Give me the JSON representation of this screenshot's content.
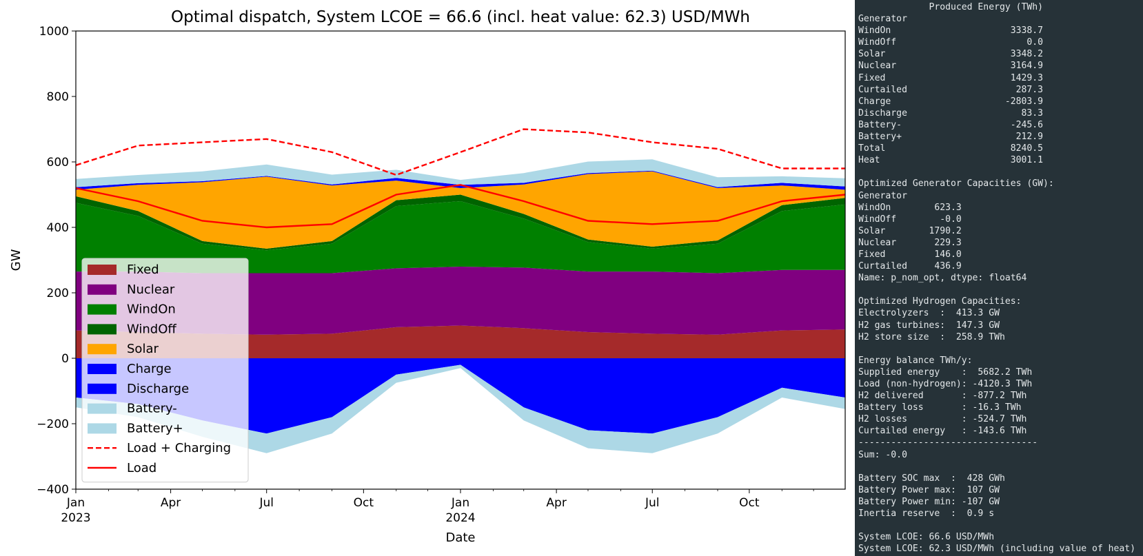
{
  "chart_data": {
    "type": "area",
    "title": "Optimal dispatch, System LCOE = 66.6 (incl. heat value: 62.3) USD/MWh",
    "xlabel": "Date",
    "ylabel": "GW",
    "ylim": [
      -400,
      1000
    ],
    "yticks": [
      1000,
      800,
      600,
      400,
      200,
      0,
      -200,
      -400
    ],
    "ytick_labels": [
      "1000",
      "800",
      "600",
      "400",
      "200",
      "0",
      "−200",
      "−400"
    ],
    "xlim": [
      "2023-01-01",
      "2024-12-31"
    ],
    "xticks": [
      {
        "date": "2023-01-01",
        "label": "Jan",
        "sub": "2023"
      },
      {
        "date": "2023-04-01",
        "label": "Apr",
        "sub": ""
      },
      {
        "date": "2023-07-01",
        "label": "Jul",
        "sub": ""
      },
      {
        "date": "2023-10-01",
        "label": "Oct",
        "sub": ""
      },
      {
        "date": "2024-01-01",
        "label": "Jan",
        "sub": "2024"
      },
      {
        "date": "2024-04-01",
        "label": "Apr",
        "sub": ""
      },
      {
        "date": "2024-07-01",
        "label": "Jul",
        "sub": ""
      },
      {
        "date": "2024-10-01",
        "label": "Oct",
        "sub": ""
      }
    ],
    "legend_position": "lower-left",
    "grid": false,
    "x": [
      "2023-01-01",
      "2023-03-01",
      "2023-05-01",
      "2023-07-01",
      "2023-09-01",
      "2023-11-01",
      "2024-01-01",
      "2024-03-01",
      "2024-05-01",
      "2024-07-01",
      "2024-09-01",
      "2024-11-01",
      "2024-12-31"
    ],
    "series": [
      {
        "name": "Fixed",
        "kind": "stack",
        "color": "#a52a2a",
        "values": [
          85,
          80,
          75,
          72,
          75,
          95,
          100,
          92,
          80,
          75,
          72,
          85,
          88
        ]
      },
      {
        "name": "Nuclear",
        "kind": "stack",
        "color": "#800080",
        "values": [
          180,
          185,
          185,
          188,
          185,
          180,
          180,
          185,
          185,
          190,
          188,
          185,
          182
        ]
      },
      {
        "name": "WindOn",
        "kind": "stack",
        "color": "#008000",
        "values": [
          210,
          170,
          90,
          70,
          90,
          190,
          200,
          150,
          90,
          70,
          90,
          180,
          200
        ]
      },
      {
        "name": "WindOff",
        "kind": "stack",
        "color": "#006400",
        "values": [
          20,
          15,
          8,
          5,
          8,
          18,
          20,
          14,
          8,
          6,
          10,
          18,
          20
        ]
      },
      {
        "name": "Solar",
        "kind": "stack",
        "color": "#ffa500",
        "values": [
          20,
          80,
          180,
          220,
          170,
          60,
          20,
          90,
          200,
          230,
          160,
          60,
          25
        ]
      },
      {
        "name": "Charge",
        "kind": "stack-neg",
        "color": "#0000ff",
        "values": [
          -120,
          -140,
          -190,
          -230,
          -180,
          -50,
          -20,
          -150,
          -220,
          -230,
          -180,
          -90,
          -120
        ]
      },
      {
        "name": "Discharge",
        "kind": "stack",
        "color": "#0000ff",
        "values": [
          8,
          5,
          3,
          2,
          3,
          8,
          10,
          5,
          3,
          2,
          3,
          8,
          10
        ]
      },
      {
        "name": "Battery-",
        "kind": "stack-neg",
        "color": "#add8e6",
        "values": [
          -30,
          -40,
          -50,
          -60,
          -50,
          -25,
          -10,
          -40,
          -55,
          -60,
          -50,
          -30,
          -35
        ]
      },
      {
        "name": "Battery+",
        "kind": "stack",
        "color": "#add8e6",
        "values": [
          25,
          25,
          30,
          35,
          30,
          25,
          15,
          30,
          35,
          35,
          30,
          20,
          25
        ]
      },
      {
        "name": "Load + Charging",
        "kind": "line-dashed",
        "color": "#ff0000",
        "values": [
          590,
          650,
          660,
          670,
          630,
          560,
          630,
          700,
          690,
          660,
          640,
          580,
          580
        ]
      },
      {
        "name": "Load",
        "kind": "line",
        "color": "#ff0000",
        "values": [
          520,
          480,
          420,
          400,
          410,
          500,
          530,
          480,
          420,
          410,
          420,
          480,
          500
        ]
      }
    ]
  },
  "console": {
    "lines": [
      "             Produced Energy (TWh)",
      "Generator",
      "WindOn                      3338.7",
      "WindOff                        0.0",
      "Solar                       3348.2",
      "Nuclear                     3164.9",
      "Fixed                       1429.3",
      "Curtailed                    287.3",
      "Charge                     -2803.9",
      "Discharge                     83.3",
      "Battery-                    -245.6",
      "Battery+                     212.9",
      "Total                       8240.5",
      "Heat                        3001.1",
      "",
      "Optimized Generator Capacities (GW):",
      "Generator",
      "WindOn        623.3",
      "WindOff        -0.0",
      "Solar        1790.2",
      "Nuclear       229.3",
      "Fixed         146.0",
      "Curtailed     436.9",
      "Name: p_nom_opt, dtype: float64",
      "",
      "Optimized Hydrogen Capacities:",
      "Electrolyzers  :  413.3 GW",
      "H2 gas turbines:  147.3 GW",
      "H2 store size  :  258.9 TWh",
      "",
      "Energy balance TWh/y:",
      "Supplied energy    :  5682.2 TWh",
      "Load (non-hydrogen): -4120.3 TWh",
      "H2 delivered       : -877.2 TWh",
      "Battery loss       : -16.3 TWh",
      "H2 losses          : -524.7 TWh",
      "Curtailed energy   : -143.6 TWh",
      "---------------------------------",
      "Sum: -0.0",
      "",
      "Battery SOC max  :  428 GWh",
      "Battery Power max:  107 GW",
      "Battery Power min: -107 GW",
      "Inertia reserve  :  0.9 s",
      "",
      "System LCOE: 66.6 USD/MWh",
      "System LCOE: 62.3 USD/MWh (including value of heat)"
    ]
  }
}
